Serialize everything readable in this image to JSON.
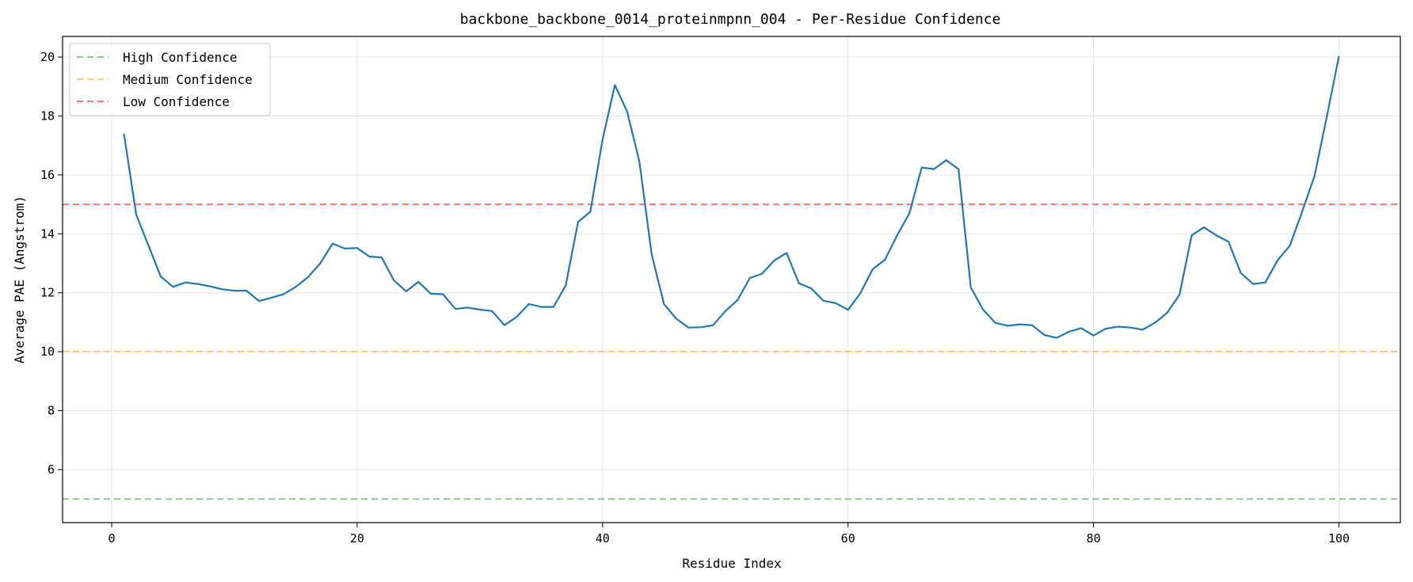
{
  "chart_data": {
    "type": "line",
    "title": "backbone_backbone_0014_proteinmpnn_004 - Per-Residue Confidence",
    "xlabel": "Residue Index",
    "ylabel": "Average PAE (Angstrom)",
    "xlim": [
      -4,
      105
    ],
    "ylim": [
      4.2,
      20.7
    ],
    "xticks": [
      0,
      20,
      40,
      60,
      80,
      100
    ],
    "yticks": [
      6,
      8,
      10,
      12,
      14,
      16,
      18,
      20
    ],
    "grid": true,
    "legend_position": "top-left",
    "series": [
      {
        "color": "#1f77b4",
        "x": [
          1,
          2,
          3,
          4,
          5,
          6,
          7,
          8,
          9,
          10,
          11,
          12,
          13,
          14,
          15,
          16,
          17,
          18,
          19,
          20,
          21,
          22,
          23,
          24,
          25,
          26,
          27,
          28,
          29,
          30,
          31,
          32,
          33,
          34,
          35,
          36,
          37,
          38,
          39,
          40,
          41,
          42,
          43,
          44,
          45,
          46,
          47,
          48,
          49,
          50,
          51,
          52,
          53,
          54,
          55,
          56,
          57,
          58,
          59,
          60,
          61,
          62,
          63,
          64,
          65,
          66,
          67,
          68,
          69,
          70,
          71,
          72,
          73,
          74,
          75,
          76,
          77,
          78,
          79,
          80,
          81,
          82,
          83,
          84,
          85,
          86,
          87,
          88,
          89,
          90,
          91,
          92,
          93,
          94,
          95,
          96,
          97,
          98,
          99,
          100
        ],
        "values": [
          17.4,
          14.65,
          13.6,
          12.55,
          12.2,
          12.35,
          12.3,
          12.22,
          12.12,
          12.07,
          12.07,
          11.72,
          11.83,
          11.95,
          12.2,
          12.53,
          13.0,
          13.67,
          13.5,
          13.52,
          13.23,
          13.2,
          12.42,
          12.05,
          12.37,
          11.97,
          11.95,
          11.45,
          11.5,
          11.43,
          11.38,
          10.9,
          11.18,
          11.62,
          11.52,
          11.52,
          12.25,
          14.4,
          14.75,
          17.2,
          19.05,
          18.15,
          16.45,
          13.3,
          11.62,
          11.12,
          10.82,
          10.83,
          10.9,
          11.38,
          11.75,
          12.5,
          12.65,
          13.1,
          13.35,
          12.32,
          12.15,
          11.73,
          11.65,
          11.42,
          11.98,
          12.8,
          13.12,
          13.95,
          14.7,
          16.25,
          16.2,
          16.5,
          16.2,
          12.18,
          11.43,
          10.98,
          10.88,
          10.93,
          10.9,
          10.57,
          10.47,
          10.68,
          10.8,
          10.55,
          10.78,
          10.85,
          10.82,
          10.75,
          10.98,
          11.32,
          11.93,
          13.95,
          14.22,
          13.95,
          13.73,
          12.67,
          12.3,
          12.35,
          13.1,
          13.6,
          14.75,
          15.95,
          17.95,
          20.03
        ]
      }
    ],
    "reference_lines": [
      {
        "name": "High Confidence",
        "y": 5,
        "color": "#2ca02c"
      },
      {
        "name": "Medium Confidence",
        "y": 10,
        "color": "#ffa500"
      },
      {
        "name": "Low Confidence",
        "y": 15,
        "color": "#ff0000"
      }
    ]
  }
}
